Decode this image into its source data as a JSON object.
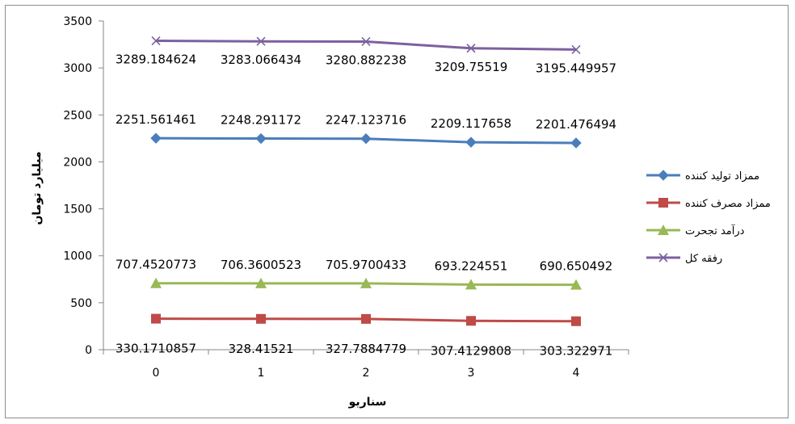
{
  "chart_data": {
    "type": "line",
    "title": "",
    "xlabel": "سناريو",
    "ylabel": "ميليارد تومان",
    "categories": [
      "0",
      "1",
      "2",
      "3",
      "4"
    ],
    "ylim": [
      0,
      3500
    ],
    "yticks": [
      0,
      500,
      1000,
      1500,
      2000,
      2500,
      3000,
      3500
    ],
    "grid": false,
    "legend_position": "right",
    "series": [
      {
        "name": "ممزاد توليد كننده",
        "color": "#4a7ebb",
        "marker": "diamond",
        "values": [
          2251.561461,
          2248.291172,
          2247.123716,
          2209.117658,
          2201.476494
        ],
        "labels": [
          "2251.561461",
          "2248.291172",
          "2247.123716",
          "2209.117658",
          "2201.476494"
        ]
      },
      {
        "name": "ممزاد مصرف كننده",
        "color": "#be4b48",
        "marker": "square",
        "values": [
          330.1710857,
          328.41521,
          327.7884779,
          307.4129808,
          303.322971
        ],
        "labels": [
          "330.1710857",
          "328.41521",
          "327.7884779",
          "307.4129808",
          "303.322971"
        ]
      },
      {
        "name": "درآمد تجحرت",
        "color": "#98b954",
        "marker": "triangle",
        "values": [
          707.4520773,
          706.3600523,
          705.9700433,
          693.224551,
          690.650492
        ],
        "labels": [
          "707.4520773",
          "706.3600523",
          "705.9700433",
          "693.224551",
          "690.650492"
        ]
      },
      {
        "name": "رفقه كل",
        "color": "#7d60a0",
        "marker": "x",
        "values": [
          3289.184624,
          3283.066434,
          3280.882238,
          3209.75519,
          3195.449957
        ],
        "labels": [
          "3289.184624",
          "3283.066434",
          "3280.882238",
          "3209.75519",
          "3195.449957"
        ]
      }
    ]
  }
}
